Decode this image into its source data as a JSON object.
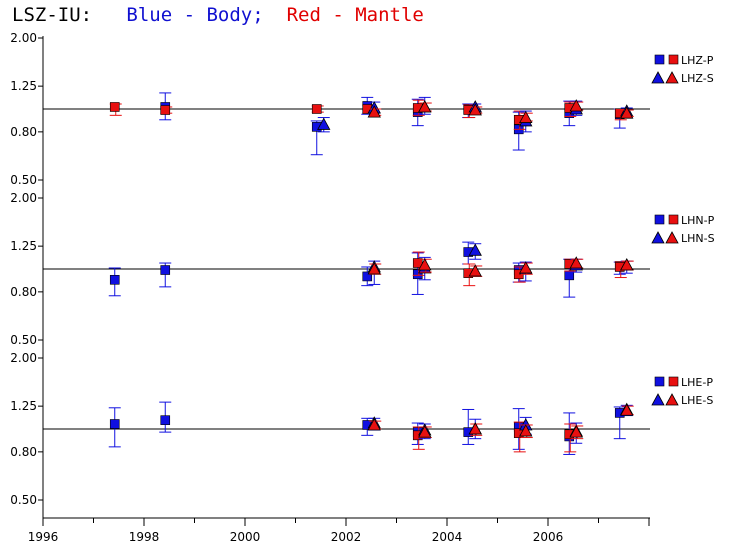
{
  "title": {
    "station": "LSZ-IU:",
    "blue_text": "Blue - Body;",
    "red_text": "Red - Mantle"
  },
  "colors": {
    "body": "#1010e0",
    "mantle": "#e81010",
    "axis": "#000000"
  },
  "chart_data": {
    "type": "scatter",
    "x_ticks": [
      "1996",
      "1998",
      "2000",
      "2002",
      "2004",
      "2006"
    ],
    "xlim": [
      1996,
      2008
    ],
    "y_ticks": [
      "0.50",
      "0.80",
      "1.25",
      "2.00"
    ],
    "y_tick_values": [
      0.5,
      0.8,
      1.25,
      2.0
    ],
    "ylim": [
      0.45,
      2.1
    ],
    "log_y": true,
    "reference_line": 1.0,
    "panels": [
      {
        "legend": [
          "LHZ-P",
          "LHZ-S"
        ],
        "series": [
          {
            "component": "P",
            "type": "body",
            "points": [
              {
                "x": 1998.5,
                "y": 1.02,
                "lo": 0.9,
                "hi": 1.17
              },
              {
                "x": 2001.5,
                "y": 0.84,
                "lo": 0.64,
                "hi": 0.89
              },
              {
                "x": 2002.5,
                "y": 1.03,
                "lo": 0.95,
                "hi": 1.12
              },
              {
                "x": 2003.5,
                "y": 0.97,
                "lo": 0.85,
                "hi": 1.1
              },
              {
                "x": 2004.5,
                "y": 1.0,
                "lo": 0.92,
                "hi": 1.05
              },
              {
                "x": 2005.5,
                "y": 0.82,
                "lo": 0.67,
                "hi": 0.97
              },
              {
                "x": 2006.5,
                "y": 0.96,
                "lo": 0.85,
                "hi": 1.08
              },
              {
                "x": 2007.5,
                "y": 0.95,
                "lo": 0.83,
                "hi": 1.0
              }
            ]
          },
          {
            "component": "P",
            "type": "mantle",
            "points": [
              {
                "x": 1997.5,
                "y": 1.02,
                "lo": 0.94,
                "hi": 1.05
              },
              {
                "x": 1998.5,
                "y": 0.99,
                "lo": 0.96,
                "hi": 1.02
              },
              {
                "x": 2001.5,
                "y": 1.0,
                "lo": 0.97,
                "hi": 1.03
              },
              {
                "x": 2002.5,
                "y": 1.0,
                "lo": 0.96,
                "hi": 1.04
              },
              {
                "x": 2003.5,
                "y": 1.01,
                "lo": 0.94,
                "hi": 1.09
              },
              {
                "x": 2004.5,
                "y": 0.99,
                "lo": 0.92,
                "hi": 1.04
              },
              {
                "x": 2005.5,
                "y": 0.9,
                "lo": 0.82,
                "hi": 0.98
              },
              {
                "x": 2006.5,
                "y": 1.01,
                "lo": 0.93,
                "hi": 1.07
              },
              {
                "x": 2007.5,
                "y": 0.96,
                "lo": 0.9,
                "hi": 1.0
              }
            ]
          },
          {
            "component": "S",
            "type": "body",
            "points": [
              {
                "x": 2001.5,
                "y": 0.86,
                "lo": 0.8,
                "hi": 0.92
              },
              {
                "x": 2002.5,
                "y": 1.01,
                "lo": 0.96,
                "hi": 1.07
              },
              {
                "x": 2003.5,
                "y": 1.02,
                "lo": 0.95,
                "hi": 1.12
              },
              {
                "x": 2004.5,
                "y": 1.02,
                "lo": 0.98,
                "hi": 1.05
              },
              {
                "x": 2005.5,
                "y": 0.89,
                "lo": 0.8,
                "hi": 0.98
              },
              {
                "x": 2006.5,
                "y": 1.0,
                "lo": 0.94,
                "hi": 1.08
              },
              {
                "x": 2007.5,
                "y": 0.98,
                "lo": 0.92,
                "hi": 1.01
              }
            ]
          },
          {
            "component": "S",
            "type": "mantle",
            "points": [
              {
                "x": 2002.5,
                "y": 0.97,
                "lo": 0.94,
                "hi": 1.0
              },
              {
                "x": 2003.5,
                "y": 1.02,
                "lo": 0.98,
                "hi": 1.06
              },
              {
                "x": 2004.5,
                "y": 0.99,
                "lo": 0.96,
                "hi": 1.02
              },
              {
                "x": 2005.5,
                "y": 0.92,
                "lo": 0.89,
                "hi": 0.96
              },
              {
                "x": 2006.5,
                "y": 1.03,
                "lo": 0.99,
                "hi": 1.07
              },
              {
                "x": 2007.5,
                "y": 0.96,
                "lo": 0.93,
                "hi": 0.99
              }
            ]
          }
        ]
      },
      {
        "legend": [
          "LHN-P",
          "LHN-S"
        ],
        "series": [
          {
            "component": "P",
            "type": "body",
            "points": [
              {
                "x": 1997.5,
                "y": 0.9,
                "lo": 0.77,
                "hi": 1.01
              },
              {
                "x": 1998.5,
                "y": 0.99,
                "lo": 0.84,
                "hi": 1.06
              },
              {
                "x": 2002.5,
                "y": 0.93,
                "lo": 0.85,
                "hi": 1.02
              },
              {
                "x": 2003.5,
                "y": 0.95,
                "lo": 0.78,
                "hi": 1.17
              },
              {
                "x": 2004.5,
                "y": 1.18,
                "lo": 1.05,
                "hi": 1.3
              },
              {
                "x": 2005.5,
                "y": 0.99,
                "lo": 0.88,
                "hi": 1.06
              },
              {
                "x": 2006.5,
                "y": 0.94,
                "lo": 0.76,
                "hi": 1.1
              },
              {
                "x": 2007.5,
                "y": 1.03,
                "lo": 0.95,
                "hi": 1.07
              }
            ]
          },
          {
            "component": "P",
            "type": "mantle",
            "points": [
              {
                "x": 2003.5,
                "y": 1.06,
                "lo": 0.94,
                "hi": 1.18
              },
              {
                "x": 2004.5,
                "y": 0.96,
                "lo": 0.85,
                "hi": 1.05
              },
              {
                "x": 2005.5,
                "y": 0.95,
                "lo": 0.88,
                "hi": 1.02
              },
              {
                "x": 2006.5,
                "y": 1.05,
                "lo": 0.98,
                "hi": 1.1
              },
              {
                "x": 2007.5,
                "y": 1.02,
                "lo": 0.92,
                "hi": 1.07
              }
            ]
          },
          {
            "component": "S",
            "type": "body",
            "points": [
              {
                "x": 2002.5,
                "y": 1.02,
                "lo": 0.86,
                "hi": 1.08
              },
              {
                "x": 2003.5,
                "y": 1.01,
                "lo": 0.9,
                "hi": 1.12
              },
              {
                "x": 2004.5,
                "y": 1.2,
                "lo": 1.1,
                "hi": 1.28
              },
              {
                "x": 2005.5,
                "y": 1.0,
                "lo": 0.89,
                "hi": 1.07
              },
              {
                "x": 2006.5,
                "y": 1.04,
                "lo": 0.97,
                "hi": 1.1
              },
              {
                "x": 2007.5,
                "y": 1.04,
                "lo": 0.96,
                "hi": 1.08
              }
            ]
          },
          {
            "component": "S",
            "type": "mantle",
            "points": [
              {
                "x": 2002.5,
                "y": 1.0,
                "lo": 0.95,
                "hi": 1.05
              },
              {
                "x": 2003.5,
                "y": 1.04,
                "lo": 0.97,
                "hi": 1.1
              },
              {
                "x": 2004.5,
                "y": 0.98,
                "lo": 0.93,
                "hi": 1.03
              },
              {
                "x": 2005.5,
                "y": 1.01,
                "lo": 0.95,
                "hi": 1.06
              },
              {
                "x": 2006.5,
                "y": 1.06,
                "lo": 1.01,
                "hi": 1.1
              },
              {
                "x": 2007.5,
                "y": 1.04,
                "lo": 0.99,
                "hi": 1.08
              }
            ]
          }
        ]
      },
      {
        "legend": [
          "LHE-P",
          "LHE-S"
        ],
        "series": [
          {
            "component": "P",
            "type": "body",
            "points": [
              {
                "x": 1997.5,
                "y": 1.05,
                "lo": 0.84,
                "hi": 1.23
              },
              {
                "x": 1998.5,
                "y": 1.09,
                "lo": 0.97,
                "hi": 1.3
              },
              {
                "x": 2002.5,
                "y": 1.04,
                "lo": 0.94,
                "hi": 1.11
              },
              {
                "x": 2003.5,
                "y": 0.97,
                "lo": 0.86,
                "hi": 1.06
              },
              {
                "x": 2004.5,
                "y": 0.97,
                "lo": 0.86,
                "hi": 1.21
              },
              {
                "x": 2005.5,
                "y": 1.02,
                "lo": 0.82,
                "hi": 1.22
              },
              {
                "x": 2006.5,
                "y": 0.93,
                "lo": 0.78,
                "hi": 1.17
              },
              {
                "x": 2007.5,
                "y": 1.17,
                "lo": 0.91,
                "hi": 1.24
              }
            ]
          },
          {
            "component": "P",
            "type": "mantle",
            "points": [
              {
                "x": 2003.5,
                "y": 0.94,
                "lo": 0.82,
                "hi": 1.02
              },
              {
                "x": 2005.5,
                "y": 0.96,
                "lo": 0.8,
                "hi": 1.07
              },
              {
                "x": 2006.5,
                "y": 0.95,
                "lo": 0.8,
                "hi": 1.05
              }
            ]
          },
          {
            "component": "S",
            "type": "body",
            "points": [
              {
                "x": 2002.5,
                "y": 1.06,
                "lo": 0.99,
                "hi": 1.11
              },
              {
                "x": 2003.5,
                "y": 0.99,
                "lo": 0.91,
                "hi": 1.05
              },
              {
                "x": 2004.5,
                "y": 1.0,
                "lo": 0.91,
                "hi": 1.1
              },
              {
                "x": 2005.5,
                "y": 1.04,
                "lo": 0.95,
                "hi": 1.12
              },
              {
                "x": 2006.5,
                "y": 0.98,
                "lo": 0.87,
                "hi": 1.06
              },
              {
                "x": 2007.5,
                "y": 1.21,
                "lo": 1.14,
                "hi": 1.26
              }
            ]
          },
          {
            "component": "S",
            "type": "mantle",
            "points": [
              {
                "x": 2002.5,
                "y": 1.04,
                "lo": 1.0,
                "hi": 1.08
              },
              {
                "x": 2003.5,
                "y": 0.97,
                "lo": 0.92,
                "hi": 1.02
              },
              {
                "x": 2004.5,
                "y": 1.0,
                "lo": 0.94,
                "hi": 1.05
              },
              {
                "x": 2005.5,
                "y": 0.98,
                "lo": 0.92,
                "hi": 1.04
              },
              {
                "x": 2006.5,
                "y": 0.97,
                "lo": 0.91,
                "hi": 1.03
              },
              {
                "x": 2007.5,
                "y": 1.2,
                "lo": 1.15,
                "hi": 1.25
              }
            ]
          }
        ]
      }
    ]
  }
}
